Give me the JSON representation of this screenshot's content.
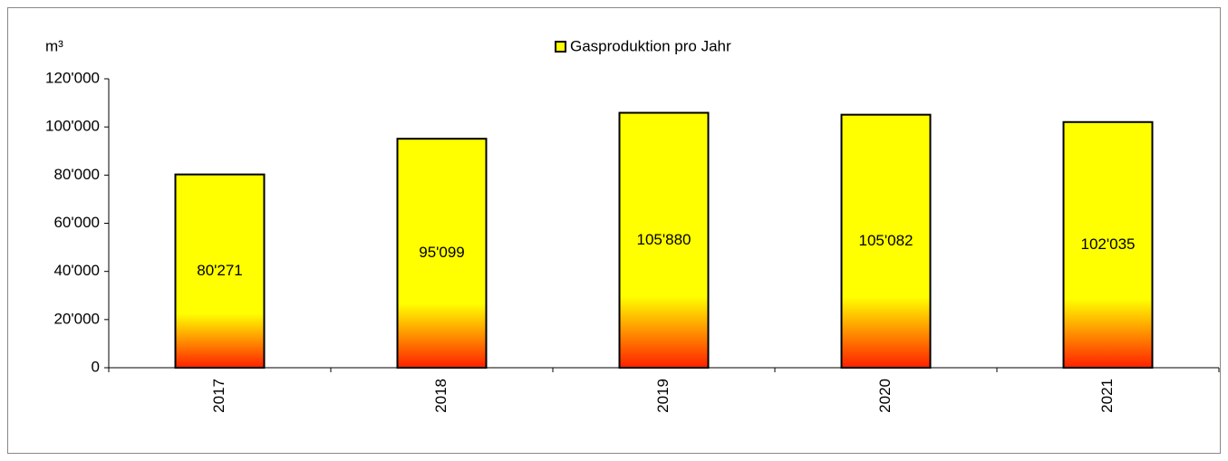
{
  "chart_data": {
    "type": "bar",
    "y_label": "m³",
    "categories": [
      "2017",
      "2018",
      "2019",
      "2020",
      "2021"
    ],
    "series": [
      {
        "name": "Gasproduktion pro Jahr",
        "color": "#ffff00",
        "values": [
          80271,
          95099,
          105880,
          105082,
          102035
        ],
        "value_labels": [
          "80'271",
          "95'099",
          "105'880",
          "105'082",
          "102'035"
        ]
      }
    ],
    "ylim": [
      0,
      120000
    ],
    "yticks": [
      0,
      {
        "value": 20000,
        "label": "20'000"
      },
      {
        "value": 40000,
        "label": "40'000"
      },
      {
        "value": 60000,
        "label": "60'000"
      },
      {
        "value": 80000,
        "label": "80'000"
      },
      {
        "value": 100000,
        "label": "100'000"
      },
      {
        "value": 120000,
        "label": "120'000"
      }
    ],
    "legend": "top"
  }
}
